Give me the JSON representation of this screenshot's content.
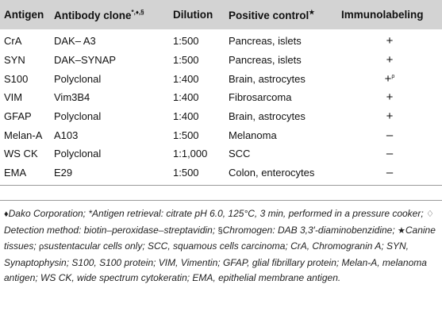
{
  "table": {
    "headers": {
      "antigen": "Antigen",
      "clone": "Antibody clone",
      "clone_marks": "*,♦,§",
      "dilution": "Dilution",
      "control": "Positive control",
      "control_mark": "★",
      "immuno": "Immunolabeling"
    },
    "rows": [
      {
        "antigen": "CrA",
        "clone": "DAK– A3",
        "dilution": "1:500",
        "control": "Pancreas, islets",
        "label": "+",
        "note": ""
      },
      {
        "antigen": "SYN",
        "clone": "DAK–SYNAP",
        "dilution": "1:500",
        "control": "Pancreas, islets",
        "label": "+",
        "note": ""
      },
      {
        "antigen": "S100",
        "clone": "Polyclonal",
        "dilution": "1:400",
        "control": "Brain, astrocytes",
        "label": "+",
        "note": "ρ"
      },
      {
        "antigen": "VIM",
        "clone": "Vim3B4",
        "dilution": "1:400",
        "control": "Fibrosarcoma",
        "label": "+",
        "note": ""
      },
      {
        "antigen": "GFAP",
        "clone": "Polyclonal",
        "dilution": "1:400",
        "control": "Brain, astrocytes",
        "label": "+",
        "note": ""
      },
      {
        "antigen": "Melan-A",
        "clone": "A103",
        "dilution": "1:500",
        "control": "Melanoma",
        "label": "–",
        "note": ""
      },
      {
        "antigen": "WS CK",
        "clone": "Polyclonal",
        "dilution": "1:1,000",
        "control": "SCC",
        "label": "–",
        "note": ""
      },
      {
        "antigen": "EMA",
        "clone": "E29",
        "dilution": "1:500",
        "control": "Colon, enterocytes",
        "label": "–",
        "note": ""
      }
    ]
  },
  "footnote": {
    "g1": "♦",
    "t1": "Dako Corporation; *Antigen retrieval: citrate pH 6.0, 125°C, 3 min, performed in a pressure cooker; ",
    "g2": "♢",
    "t2": " Detection method: biotin–peroxidase–streptavidin; ",
    "g3": "§",
    "t3": "Chromogen: DAB 3,3′-diaminobenzidine; ",
    "g4": "★",
    "t4": "Canine tissues; ",
    "g5": "ρ",
    "t5": "sustentacular cells only; SCC, squamous cells carcinoma; CrA, Chromogranin A; SYN, Synaptophysin; S100, S100 protein; VIM, Vimentin; GFAP, glial fibrillary protein; Melan-A, melanoma antigen; WS CK, wide spectrum cytokeratin; EMA, epithelial membrane antigen."
  }
}
